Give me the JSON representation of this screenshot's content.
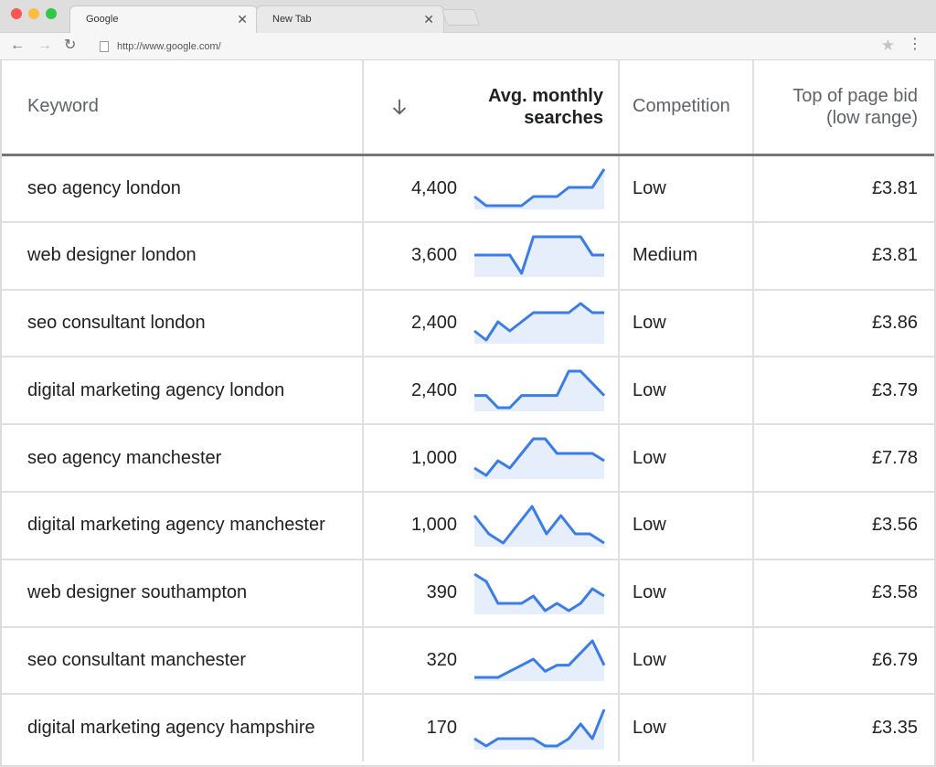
{
  "browser": {
    "tabs": [
      {
        "label": "Google",
        "active": true
      },
      {
        "label": "New Tab",
        "active": false
      }
    ],
    "url": "http://www.google.com/",
    "icons": {
      "back": "arrow-left-icon",
      "forward": "arrow-right-icon",
      "reload": "reload-icon",
      "close": "close-icon",
      "bookmark": "star-icon",
      "menu": "menu-dots-icon"
    }
  },
  "table": {
    "headers": {
      "keyword": "Keyword",
      "avg_monthly_line1": "Avg. monthly",
      "avg_monthly_line2": "searches",
      "competition": "Competition",
      "bid_line1": "Top of page bid",
      "bid_line2": "(low range)"
    },
    "sort_icon": "arrow-down-icon",
    "trend_color": "#3c7de3",
    "trend_fill": "#e6edfb",
    "rows": [
      {
        "keyword": "seo agency london",
        "searches": "4,400",
        "competition": "Low",
        "bid": "£3.81",
        "trend": [
          1,
          0,
          0,
          0,
          0,
          1,
          1,
          1,
          2,
          2,
          2,
          4
        ]
      },
      {
        "keyword": "web designer london",
        "searches": "3,600",
        "competition": "Medium",
        "bid": "£3.81",
        "trend": [
          2,
          2,
          2,
          2,
          0,
          4,
          4,
          4,
          4,
          4,
          2,
          2
        ]
      },
      {
        "keyword": "seo consultant london",
        "searches": "2,400",
        "competition": "Low",
        "bid": "£3.86",
        "trend": [
          1,
          0,
          2,
          1,
          2,
          3,
          3,
          3,
          3,
          4,
          3,
          3
        ]
      },
      {
        "keyword": "digital marketing agency london",
        "searches": "2,400",
        "competition": "Low",
        "bid": "£3.79",
        "trend": [
          1,
          1,
          0,
          0,
          1,
          1,
          1,
          1,
          3,
          3,
          2,
          1
        ]
      },
      {
        "keyword": "seo agency manchester",
        "searches": "1,000",
        "competition": "Low",
        "bid": "£7.78",
        "trend": [
          1,
          0,
          2,
          1,
          3,
          5,
          5,
          3,
          3,
          3,
          3,
          2
        ]
      },
      {
        "keyword": "digital marketing agency manchester",
        "searches": "1,000",
        "competition": "Low",
        "bid": "£3.56",
        "trend": [
          3,
          1,
          0,
          2,
          4,
          1,
          3,
          1,
          1,
          0
        ]
      },
      {
        "keyword": "web designer southampton",
        "searches": "390",
        "competition": "Low",
        "bid": "£3.58",
        "trend": [
          5,
          4,
          1,
          1,
          1,
          2,
          0,
          1,
          0,
          1,
          3,
          2
        ]
      },
      {
        "keyword": "seo consultant manchester",
        "searches": "320",
        "competition": "Low",
        "bid": "£6.79",
        "trend": [
          0,
          0,
          0,
          1,
          2,
          3,
          1,
          2,
          2,
          4,
          6,
          2
        ]
      },
      {
        "keyword": "digital marketing agency hampshire",
        "searches": "170",
        "competition": "Low",
        "bid": "£3.35",
        "trend": [
          1,
          0,
          1,
          1,
          1,
          1,
          0,
          0,
          1,
          3,
          1,
          5
        ]
      }
    ]
  }
}
